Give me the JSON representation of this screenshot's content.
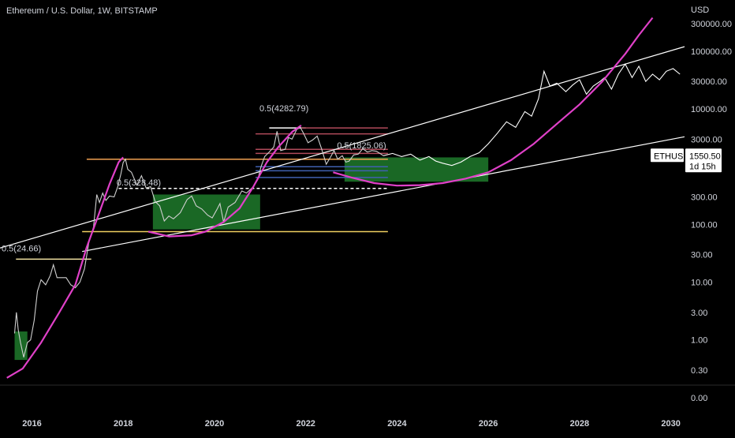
{
  "header": {
    "title": "Ethereum / U.S. Dollar, 1W, BITSTAMP"
  },
  "chart_data": {
    "type": "line",
    "symbol": "ETHUSD",
    "currency_label": "USD",
    "log_scale": true,
    "grid": false,
    "x_range": [
      2015.3,
      2030.3
    ],
    "y_range": [
      0.17,
      600000
    ],
    "x_ticks": [
      "2016",
      "2018",
      "2020",
      "2022",
      "2024",
      "2026",
      "2028",
      "2030"
    ],
    "y_ticks": [
      {
        "label": "300000.00",
        "value": 300000
      },
      {
        "label": "100000.00",
        "value": 100000
      },
      {
        "label": "30000.00",
        "value": 30000
      },
      {
        "label": "10000.00",
        "value": 10000
      },
      {
        "label": "3000.00",
        "value": 3000
      },
      {
        "label": "300.00",
        "value": 300
      },
      {
        "label": "100.00",
        "value": 100
      },
      {
        "label": "30.00",
        "value": 30
      },
      {
        "label": "10.00",
        "value": 10
      },
      {
        "label": "3.00",
        "value": 3
      },
      {
        "label": "1.00",
        "value": 1
      },
      {
        "label": "0.30",
        "value": 0.3
      }
    ],
    "bottom_tick_label": "0.00",
    "price_label": {
      "symbol": "ETHUSD",
      "value": "1550.50",
      "countdown": "1d 15h",
      "price": 1550.5
    },
    "series": [
      {
        "color": "#cfcfcf",
        "points": [
          [
            2015.62,
            1.3
          ],
          [
            2015.66,
            3.0
          ],
          [
            2015.7,
            1.5
          ],
          [
            2015.75,
            0.9
          ],
          [
            2015.82,
            0.5
          ],
          [
            2015.9,
            0.9
          ],
          [
            2015.97,
            1.0
          ],
          [
            2016.05,
            2.2
          ],
          [
            2016.12,
            7.0
          ],
          [
            2016.2,
            11
          ],
          [
            2016.3,
            9
          ],
          [
            2016.4,
            13
          ],
          [
            2016.47,
            20
          ],
          [
            2016.55,
            12
          ],
          [
            2016.65,
            12
          ],
          [
            2016.75,
            12
          ],
          [
            2016.85,
            9
          ],
          [
            2016.95,
            8
          ],
          [
            2017.05,
            10
          ],
          [
            2017.15,
            17
          ],
          [
            2017.25,
            50
          ],
          [
            2017.35,
            90
          ],
          [
            2017.42,
            330
          ],
          [
            2017.48,
            240
          ],
          [
            2017.55,
            350
          ],
          [
            2017.62,
            260
          ],
          [
            2017.7,
            310
          ],
          [
            2017.8,
            300
          ],
          [
            2017.88,
            450
          ],
          [
            2017.95,
            750
          ],
          [
            2018.0,
            1180
          ],
          [
            2018.05,
            1350
          ],
          [
            2018.1,
            900
          ],
          [
            2018.18,
            800
          ],
          [
            2018.3,
            480
          ],
          [
            2018.4,
            700
          ],
          [
            2018.5,
            430
          ],
          [
            2018.6,
            450
          ],
          [
            2018.7,
            250
          ],
          [
            2018.8,
            210
          ],
          [
            2018.9,
            115
          ],
          [
            2019.0,
            140
          ],
          [
            2019.1,
            125
          ],
          [
            2019.25,
            160
          ],
          [
            2019.4,
            270
          ],
          [
            2019.5,
            310
          ],
          [
            2019.6,
            210
          ],
          [
            2019.72,
            185
          ],
          [
            2019.85,
            145
          ],
          [
            2019.95,
            130
          ],
          [
            2020.05,
            180
          ],
          [
            2020.12,
            230
          ],
          [
            2020.2,
            110
          ],
          [
            2020.3,
            200
          ],
          [
            2020.45,
            240
          ],
          [
            2020.6,
            380
          ],
          [
            2020.7,
            350
          ],
          [
            2020.85,
            450
          ],
          [
            2020.95,
            600
          ],
          [
            2021.02,
            1000
          ],
          [
            2021.1,
            1500
          ],
          [
            2021.2,
            1800
          ],
          [
            2021.3,
            2200
          ],
          [
            2021.37,
            4100
          ],
          [
            2021.45,
            1900
          ],
          [
            2021.55,
            2000
          ],
          [
            2021.62,
            3200
          ],
          [
            2021.7,
            3000
          ],
          [
            2021.8,
            4400
          ],
          [
            2021.88,
            4800
          ],
          [
            2021.95,
            3800
          ],
          [
            2022.05,
            2600
          ],
          [
            2022.15,
            2900
          ],
          [
            2022.25,
            3400
          ],
          [
            2022.35,
            2000
          ],
          [
            2022.45,
            1100
          ],
          [
            2022.55,
            1500
          ],
          [
            2022.62,
            1900
          ],
          [
            2022.7,
            1350
          ],
          [
            2022.8,
            1550
          ],
          [
            2022.88,
            1200
          ],
          [
            2022.95,
            1250
          ],
          [
            2023.05,
            1600
          ],
          [
            2023.15,
            1650
          ],
          [
            2023.25,
            2050
          ],
          [
            2023.35,
            1800
          ],
          [
            2023.45,
            1900
          ],
          [
            2023.55,
            1850
          ],
          [
            2023.65,
            1650
          ],
          [
            2023.7,
            1550
          ]
        ]
      },
      {
        "color": "#ffffff",
        "points": [
          [
            2023.7,
            1550
          ],
          [
            2023.9,
            1700
          ],
          [
            2024.1,
            1500
          ],
          [
            2024.3,
            1650
          ],
          [
            2024.5,
            1300
          ],
          [
            2024.7,
            1500
          ],
          [
            2024.85,
            1250
          ],
          [
            2025.0,
            1150
          ],
          [
            2025.2,
            1050
          ],
          [
            2025.4,
            1200
          ],
          [
            2025.6,
            1500
          ],
          [
            2025.8,
            1750
          ],
          [
            2026.0,
            2500
          ],
          [
            2026.2,
            3800
          ],
          [
            2026.4,
            6000
          ],
          [
            2026.6,
            4800
          ],
          [
            2026.8,
            9000
          ],
          [
            2026.95,
            7500
          ],
          [
            2027.1,
            15000
          ],
          [
            2027.22,
            45000
          ],
          [
            2027.35,
            25000
          ],
          [
            2027.5,
            28000
          ],
          [
            2027.7,
            20000
          ],
          [
            2027.85,
            26000
          ],
          [
            2028.0,
            32000
          ],
          [
            2028.15,
            18000
          ],
          [
            2028.3,
            25000
          ],
          [
            2028.45,
            30000
          ],
          [
            2028.55,
            35000
          ],
          [
            2028.7,
            22000
          ],
          [
            2028.85,
            40000
          ],
          [
            2029.0,
            60000
          ],
          [
            2029.15,
            35000
          ],
          [
            2029.3,
            55000
          ],
          [
            2029.45,
            30000
          ],
          [
            2029.6,
            40000
          ],
          [
            2029.75,
            32000
          ],
          [
            2029.9,
            45000
          ],
          [
            2030.05,
            50000
          ],
          [
            2030.2,
            40000
          ]
        ]
      }
    ],
    "channel_lines": [
      {
        "color": "#ffffff",
        "from": [
          2015.2,
          37
        ],
        "to": [
          2030.3,
          120000
        ]
      },
      {
        "color": "#ffffff",
        "from": [
          2017.1,
          34
        ],
        "to": [
          2030.3,
          3300
        ]
      }
    ],
    "curves": [
      {
        "color": "#e040c8",
        "points": [
          [
            2015.45,
            0.22
          ],
          [
            2015.8,
            0.32
          ],
          [
            2016.2,
            0.9
          ],
          [
            2016.6,
            3.0
          ],
          [
            2016.95,
            9
          ],
          [
            2017.2,
            40
          ],
          [
            2017.45,
            140
          ],
          [
            2017.7,
            500
          ],
          [
            2017.9,
            1200
          ],
          [
            2018.0,
            1450
          ]
        ]
      },
      {
        "color": "#e040c8",
        "points": [
          [
            2018.55,
            75
          ],
          [
            2019.0,
            62
          ],
          [
            2019.5,
            65
          ],
          [
            2019.8,
            75
          ],
          [
            2020.2,
            110
          ],
          [
            2020.55,
            190
          ],
          [
            2020.85,
            450
          ],
          [
            2021.15,
            1200
          ],
          [
            2021.4,
            2200
          ],
          [
            2021.7,
            4000
          ],
          [
            2021.9,
            5200
          ]
        ]
      },
      {
        "color": "#e040c8",
        "points": [
          [
            2022.6,
            800
          ],
          [
            2023.0,
            650
          ],
          [
            2023.5,
            520
          ],
          [
            2024.0,
            470
          ],
          [
            2024.5,
            480
          ],
          [
            2025.0,
            520
          ],
          [
            2025.5,
            620
          ],
          [
            2026.0,
            800
          ],
          [
            2026.5,
            1300
          ],
          [
            2027.0,
            2500
          ],
          [
            2027.5,
            5500
          ],
          [
            2028.0,
            12000
          ],
          [
            2028.5,
            30000
          ],
          [
            2029.0,
            90000
          ],
          [
            2029.3,
            190000
          ],
          [
            2029.6,
            380000
          ]
        ]
      }
    ],
    "horizontal_levels": [
      {
        "color": "#f0a050",
        "y": 1350,
        "x_start": 2017.2,
        "x_end": 2023.8
      },
      {
        "color": "#f0d060",
        "y": 75,
        "x_start": 2017.1,
        "x_end": 2023.8
      },
      {
        "color": "#ffffff",
        "y": 420,
        "x_start": 2017.9,
        "x_end": 2023.8,
        "dashed": true
      },
      {
        "color": "#f0e0a0",
        "y": 25,
        "x_start": 2015.65,
        "x_end": 2017.3
      },
      {
        "color": "#ffffff",
        "y": 4700,
        "x_start": 2021.2,
        "x_end": 2022.0
      },
      {
        "color": "#b04a5a",
        "y": 4700,
        "x_start": 2021.9,
        "x_end": 2023.8
      },
      {
        "color": "#b04a5a",
        "y": 3700,
        "x_start": 2020.9,
        "x_end": 2023.8
      },
      {
        "color": "#b04a5a",
        "y": 2000,
        "x_start": 2020.9,
        "x_end": 2023.8
      },
      {
        "color": "#b04a5a",
        "y": 1700,
        "x_start": 2020.9,
        "x_end": 2023.8
      },
      {
        "color": "#4060b0",
        "y": 1000,
        "x_start": 2020.9,
        "x_end": 2023.8
      },
      {
        "color": "#4060b0",
        "y": 850,
        "x_start": 2020.9,
        "x_end": 2023.8
      },
      {
        "color": "#4060b0",
        "y": 650,
        "x_start": 2020.9,
        "x_end": 2023.8
      }
    ],
    "zones": [
      {
        "color": "#1f7a2c",
        "x_start": 2015.62,
        "x_end": 2015.9,
        "y_low": 0.45,
        "y_high": 1.4
      },
      {
        "color": "#1f7a2c",
        "x_start": 2018.65,
        "x_end": 2021.0,
        "y_low": 82,
        "y_high": 330
      },
      {
        "color": "#1f7a2c",
        "x_start": 2022.85,
        "x_end": 2026.0,
        "y_low": 550,
        "y_high": 1450
      }
    ],
    "annotations": [
      {
        "text": "0.5(24.66)",
        "x": 2015.3,
        "y": 30
      },
      {
        "text": "0.5(328.48)",
        "x": 2017.82,
        "y": 420
      },
      {
        "text": "0.5(4282.79)",
        "x": 2020.95,
        "y": 8000
      },
      {
        "text": "0.5(1825.06)",
        "x": 2022.65,
        "y": 1825
      }
    ]
  }
}
